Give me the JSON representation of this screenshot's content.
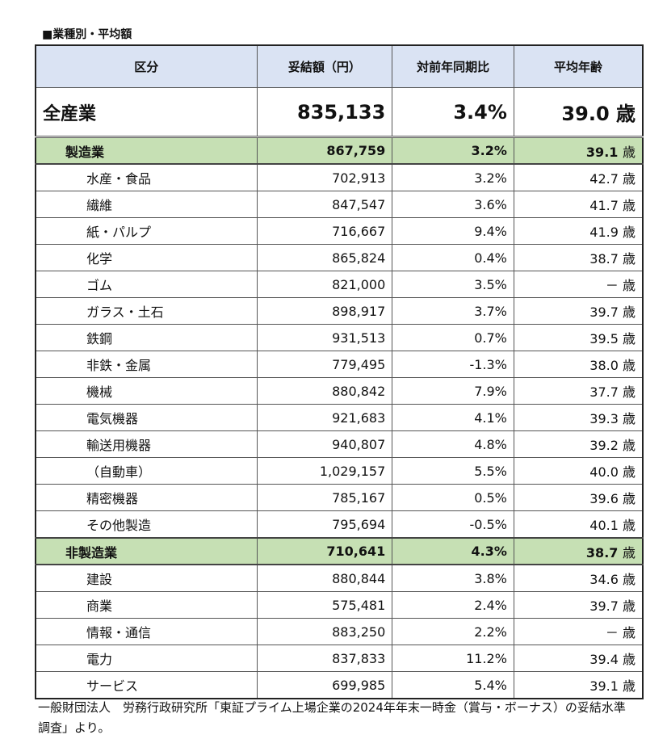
{
  "title": "■業種別・平均額",
  "headers": [
    "区分",
    "妥結額（円）",
    "対前年同期比",
    "平均年齢"
  ],
  "age_unit": "歳",
  "all": {
    "name": "全産業",
    "amount": "835,133",
    "yoy": "3.4%",
    "age": "39.0"
  },
  "groups": [
    {
      "name": "製造業",
      "amount": "867,759",
      "yoy": "3.2%",
      "age": "39.1",
      "rows": [
        {
          "name": "水産・食品",
          "amount": "702,913",
          "yoy": "3.2%",
          "age": "42.7"
        },
        {
          "name": "繊維",
          "amount": "847,547",
          "yoy": "3.6%",
          "age": "41.7"
        },
        {
          "name": "紙・パルプ",
          "amount": "716,667",
          "yoy": "9.4%",
          "age": "41.9"
        },
        {
          "name": "化学",
          "amount": "865,824",
          "yoy": "0.4%",
          "age": "38.7"
        },
        {
          "name": "ゴム",
          "amount": "821,000",
          "yoy": "3.5%",
          "age": "－"
        },
        {
          "name": "ガラス・土石",
          "amount": "898,917",
          "yoy": "3.7%",
          "age": "39.7"
        },
        {
          "name": "鉄鋼",
          "amount": "931,513",
          "yoy": "0.7%",
          "age": "39.5"
        },
        {
          "name": "非鉄・金属",
          "amount": "779,495",
          "yoy": "-1.3%",
          "age": "38.0"
        },
        {
          "name": "機械",
          "amount": "880,842",
          "yoy": "7.9%",
          "age": "37.7"
        },
        {
          "name": "電気機器",
          "amount": "921,683",
          "yoy": "4.1%",
          "age": "39.3"
        },
        {
          "name": "輸送用機器",
          "amount": "940,807",
          "yoy": "4.8%",
          "age": "39.2"
        },
        {
          "name": "（自動車）",
          "amount": "1,029,157",
          "yoy": "5.5%",
          "age": "40.0"
        },
        {
          "name": "精密機器",
          "amount": "785,167",
          "yoy": "0.5%",
          "age": "39.6"
        },
        {
          "name": "その他製造",
          "amount": "795,694",
          "yoy": "-0.5%",
          "age": "40.1"
        }
      ]
    },
    {
      "name": "非製造業",
      "amount": "710,641",
      "yoy": "4.3%",
      "age": "38.7",
      "rows": [
        {
          "name": "建設",
          "amount": "880,844",
          "yoy": "3.8%",
          "age": "34.6"
        },
        {
          "name": "商業",
          "amount": "575,481",
          "yoy": "2.4%",
          "age": "39.7"
        },
        {
          "name": "情報・通信",
          "amount": "883,250",
          "yoy": "2.2%",
          "age": "－"
        },
        {
          "name": "電力",
          "amount": "837,833",
          "yoy": "11.2%",
          "age": "39.4"
        },
        {
          "name": "サービス",
          "amount": "699,985",
          "yoy": "5.4%",
          "age": "39.1"
        }
      ]
    }
  ],
  "footnote": "一般財団法人　労務行政研究所「東証プライム上場企業の2024年年末一時金（賞与・ボーナス）の妥結水準調査」より。"
}
